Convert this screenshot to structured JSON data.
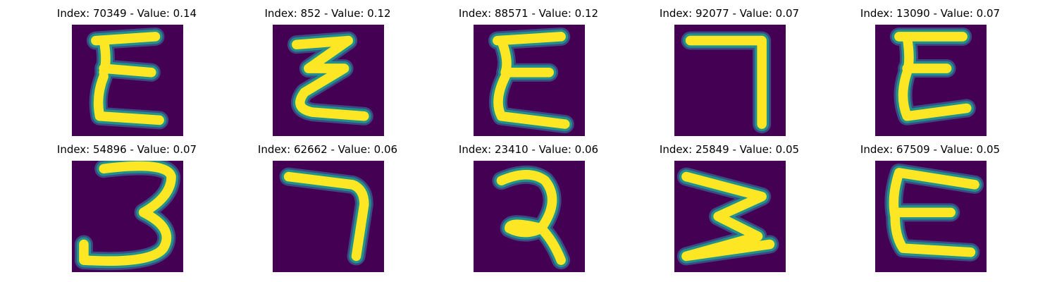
{
  "colors": {
    "background": "#440154",
    "stroke_core": "#fde725",
    "stroke_mid": "#21918c",
    "stroke_edge": "#3b528b"
  },
  "images": [
    {
      "title": "Index: 70349 - Value: 0.14",
      "index": 70349,
      "value": 0.14,
      "depicts": "handwritten-epsilon-shape"
    },
    {
      "title": "Index: 852 - Value: 0.12",
      "index": 852,
      "value": 0.12,
      "depicts": "handwritten-zigzag-shape"
    },
    {
      "title": "Index: 88571 - Value: 0.12",
      "index": 88571,
      "value": 0.12,
      "depicts": "handwritten-epsilon-shape"
    },
    {
      "title": "Index: 92077 - Value: 0.07",
      "index": 92077,
      "value": 0.07,
      "depicts": "handwritten-seven-shape"
    },
    {
      "title": "Index: 13090 - Value: 0.07",
      "index": 13090,
      "value": 0.07,
      "depicts": "handwritten-epsilon-shape"
    },
    {
      "title": "Index: 54896 - Value: 0.07",
      "index": 54896,
      "value": 0.07,
      "depicts": "handwritten-three-shape"
    },
    {
      "title": "Index: 62662 - Value: 0.06",
      "index": 62662,
      "value": 0.06,
      "depicts": "handwritten-seven-shape"
    },
    {
      "title": "Index: 23410 - Value: 0.06",
      "index": 23410,
      "value": 0.06,
      "depicts": "handwritten-reversed-two-shape"
    },
    {
      "title": "Index: 25849 - Value: 0.05",
      "index": 25849,
      "value": 0.05,
      "depicts": "handwritten-sideways-m-shape"
    },
    {
      "title": "Index: 67509 - Value: 0.05",
      "index": 67509,
      "value": 0.05,
      "depicts": "handwritten-epsilon-shape"
    }
  ]
}
